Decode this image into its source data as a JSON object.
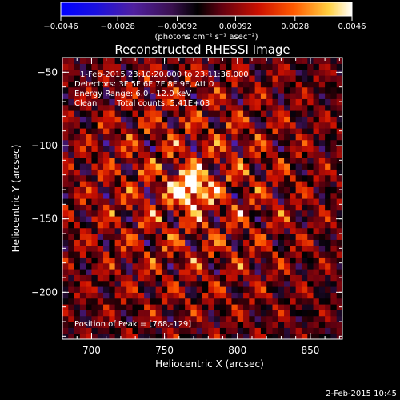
{
  "chart_data": {
    "type": "heatmap",
    "title": "Reconstructed RHESSI Image",
    "xlabel": "Heliocentric X (arcsec)",
    "ylabel": "Heliocentric Y (arcsec)",
    "xlim": [
      680,
      872
    ],
    "ylim": [
      -232,
      -40
    ],
    "x_ticks": [
      700,
      750,
      800,
      850
    ],
    "y_ticks": [
      -50,
      -100,
      -150,
      -200
    ],
    "x_tick_labels": [
      "700",
      "750",
      "800",
      "850"
    ],
    "y_tick_labels": [
      "−50",
      "−100",
      "−150",
      "−200"
    ],
    "colorbar": {
      "min": -0.0046,
      "max": 0.0046,
      "tick_values": [
        -0.0046,
        -0.0028,
        -0.00092,
        0.00092,
        0.0028,
        0.0046
      ],
      "tick_labels": [
        "−0.0046",
        "−0.0028",
        "−0.00092",
        "0.00092",
        "0.0028",
        "0.0046"
      ],
      "unit_label": "(photons cm⁻² s⁻¹ asec⁻²)"
    },
    "annotations": {
      "time_range": "1-Feb-2015 23:10:20.000 to 23:11:36.000",
      "detectors": "Detectors: 3F 5F 6F 7F 8F 9F, Att 0",
      "energy": "Energy Range: 6.0 - 12.0 keV",
      "clean": "Clean",
      "counts": "Total counts: 5.41E+03",
      "peak": "Position of Peak = [768,-129]"
    },
    "peak": {
      "x": 768,
      "y": -129
    },
    "grid": false
  },
  "footer": {
    "date": "2-Feb-2015 10:45"
  }
}
